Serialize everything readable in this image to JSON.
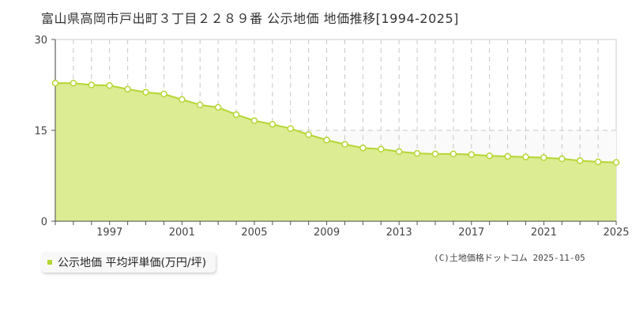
{
  "header": {
    "title": "富山県高岡市戸出町３丁目２２８９番 公示地価 地価推移[1994-2025]"
  },
  "legend": {
    "label": "公示地価 平均坪単価(万円/坪)",
    "color": "#b5d633"
  },
  "footer": {
    "copyright": "(C)土地価格ドットコム 2025-11-05"
  },
  "colors": {
    "area_fill": "#dbec93",
    "line": "#b5d633",
    "marker_stroke": "#b5d633",
    "marker_fill": "#ffffff",
    "grid": "#c8c8c8",
    "axis": "#555555"
  },
  "chart_data": {
    "type": "area",
    "title": "富山県高岡市戸出町３丁目２２８９番 公示地価 地価推移[1994-2025]",
    "xlabel": "",
    "ylabel": "",
    "ylim": [
      0,
      30
    ],
    "yticks": [
      0,
      15,
      30
    ],
    "xlim": [
      1994,
      2025
    ],
    "xtick_labels": [
      "1997",
      "2001",
      "2005",
      "2009",
      "2013",
      "2017",
      "2021",
      "2025"
    ],
    "grid": true,
    "legend_position": "bottom-left",
    "series": [
      {
        "name": "公示地価 平均坪単価(万円/坪)",
        "x": [
          1994,
          1995,
          1996,
          1997,
          1998,
          1999,
          2000,
          2001,
          2002,
          2003,
          2004,
          2005,
          2006,
          2007,
          2008,
          2009,
          2010,
          2011,
          2012,
          2013,
          2014,
          2015,
          2016,
          2017,
          2018,
          2019,
          2020,
          2021,
          2022,
          2023,
          2024,
          2025
        ],
        "values": [
          22.8,
          22.8,
          22.5,
          22.4,
          21.8,
          21.3,
          21.0,
          20.1,
          19.2,
          18.8,
          17.6,
          16.6,
          16.0,
          15.3,
          14.3,
          13.4,
          12.7,
          12.1,
          11.9,
          11.5,
          11.2,
          11.1,
          11.1,
          11.0,
          10.8,
          10.7,
          10.6,
          10.5,
          10.3,
          10.0,
          9.8,
          9.7
        ]
      }
    ]
  }
}
